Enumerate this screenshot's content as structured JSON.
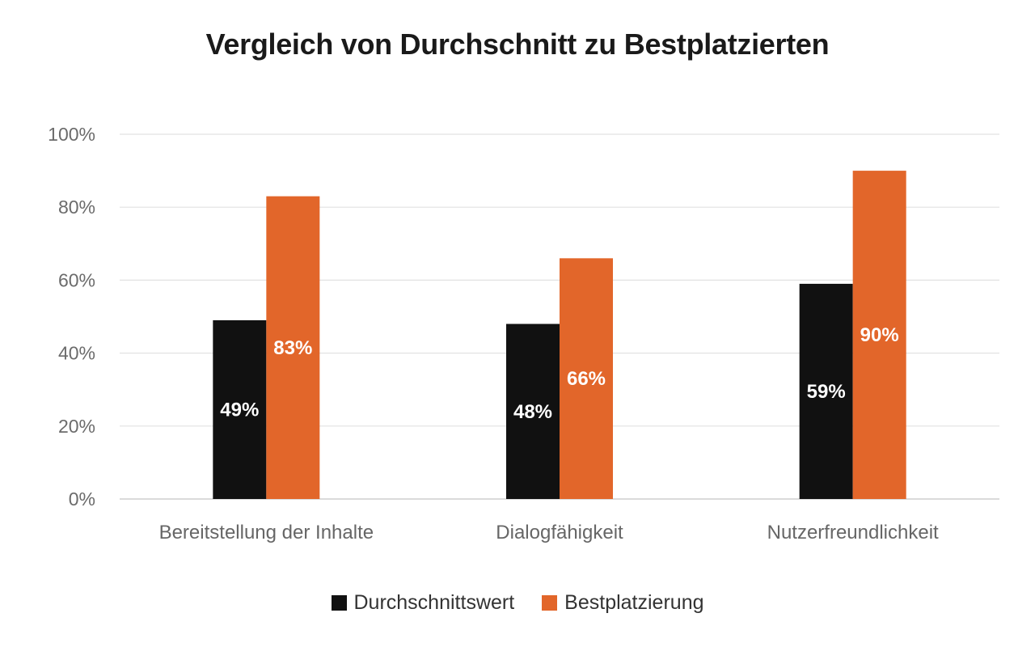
{
  "chart_data": {
    "type": "bar",
    "title": "Vergleich von Durchschnitt zu Bestplatzierten",
    "categories": [
      "Bereitstellung der Inhalte",
      "Dialogfähigkeit",
      "Nutzerfreundlichkeit"
    ],
    "series": [
      {
        "name": "Durchschnittswert",
        "values": [
          49,
          48,
          59
        ],
        "color": "#111111"
      },
      {
        "name": "Bestplatzierung",
        "values": [
          83,
          66,
          90
        ],
        "color": "#E2662A"
      }
    ],
    "data_labels": {
      "Durchschnittswert": [
        "49%",
        "48%",
        "59%"
      ],
      "Bestplatzierung": [
        "83%",
        "66%",
        "90%"
      ]
    },
    "yticks": [
      "0%",
      "20%",
      "40%",
      "60%",
      "80%",
      "100%"
    ],
    "ylim": [
      0,
      100
    ],
    "xlabel": "",
    "ylabel": "",
    "grid": true,
    "legend_position": "bottom"
  }
}
